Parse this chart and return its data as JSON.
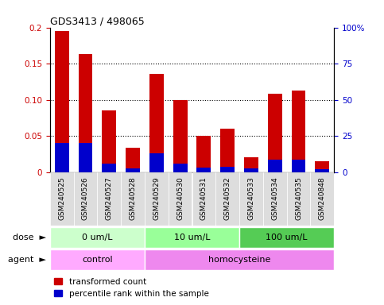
{
  "title": "GDS3413 / 498065",
  "samples": [
    "GSM240525",
    "GSM240526",
    "GSM240527",
    "GSM240528",
    "GSM240529",
    "GSM240530",
    "GSM240531",
    "GSM240532",
    "GSM240533",
    "GSM240534",
    "GSM240535",
    "GSM240848"
  ],
  "red_values": [
    0.195,
    0.163,
    0.085,
    0.034,
    0.136,
    0.1,
    0.05,
    0.06,
    0.021,
    0.108,
    0.113,
    0.015
  ],
  "blue_values": [
    0.04,
    0.04,
    0.012,
    0.005,
    0.026,
    0.012,
    0.007,
    0.008,
    0.005,
    0.018,
    0.018,
    0.004
  ],
  "ylim_left": [
    0,
    0.2
  ],
  "ylim_right": [
    0,
    100
  ],
  "yticks_left": [
    0,
    0.05,
    0.1,
    0.15,
    0.2
  ],
  "yticks_left_labels": [
    "0",
    "0.05",
    "0.10",
    "0.15",
    "0.2"
  ],
  "yticks_right": [
    0,
    25,
    50,
    75,
    100
  ],
  "yticks_right_labels": [
    "0",
    "25",
    "50",
    "75",
    "100%"
  ],
  "dose_groups": [
    {
      "label": "0 um/L",
      "start": 0,
      "end": 4,
      "color": "#ccffcc"
    },
    {
      "label": "10 um/L",
      "start": 4,
      "end": 8,
      "color": "#99ff99"
    },
    {
      "label": "100 um/L",
      "start": 8,
      "end": 12,
      "color": "#55cc55"
    }
  ],
  "agent_groups": [
    {
      "label": "control",
      "start": 0,
      "end": 4,
      "color": "#ffaaff"
    },
    {
      "label": "homocysteine",
      "start": 4,
      "end": 12,
      "color": "#ee88ee"
    }
  ],
  "legend_red_label": "transformed count",
  "legend_blue_label": "percentile rank within the sample",
  "dose_label": "dose",
  "agent_label": "agent",
  "bar_color_red": "#cc0000",
  "bar_color_blue": "#0000cc",
  "bg_color": "#ffffff",
  "tick_color_left": "#cc0000",
  "tick_color_right": "#0000cc",
  "bar_width": 0.6,
  "xticklabel_bg": "#dddddd"
}
